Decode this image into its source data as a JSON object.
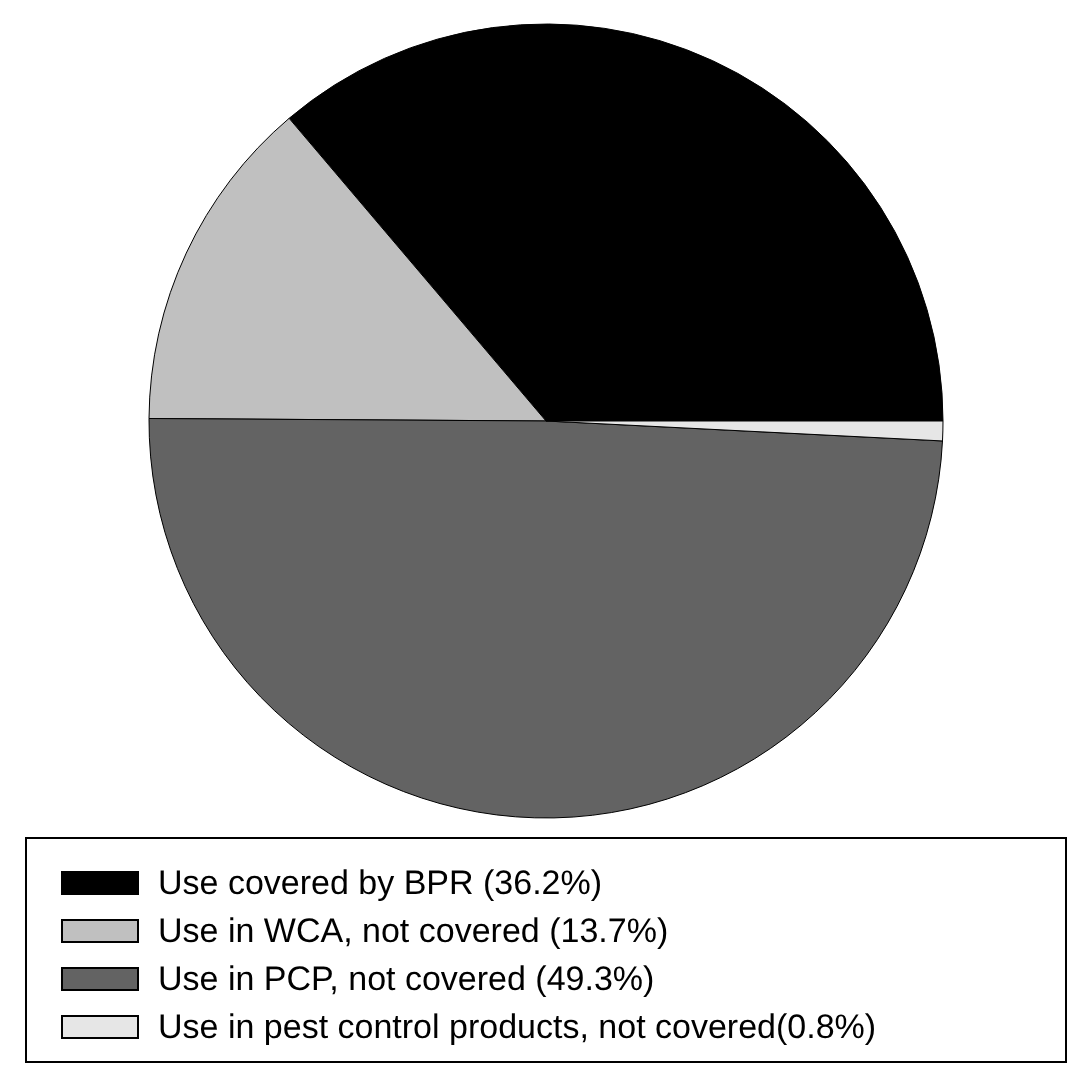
{
  "chart_data": {
    "type": "pie",
    "categories": [
      "Use covered by BPR (36.2%)",
      "Use in WCA, not covered (13.7%)",
      "Use in PCP, not covered (49.3%)",
      "Use in pest control products, not covered(0.8%)"
    ],
    "values": [
      36.2,
      13.7,
      49.3,
      0.8
    ],
    "colors": [
      "#000000",
      "#c0c0c0",
      "#636363",
      "#e6e6e6"
    ],
    "legend": "bottom"
  }
}
